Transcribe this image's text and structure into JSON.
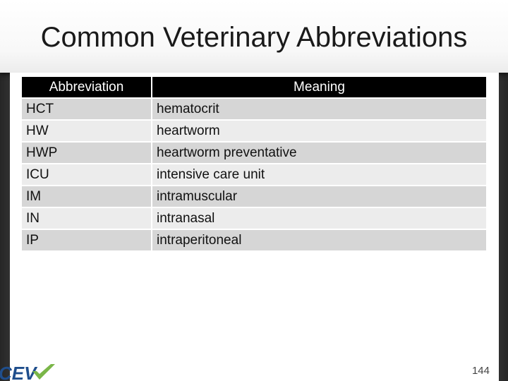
{
  "slide": {
    "title": "Common Veterinary Abbreviations",
    "page_number": "144"
  },
  "logo": {
    "text": "CEV",
    "colors": {
      "blue": "#1f4e8c",
      "green": "#7ab648"
    }
  },
  "table": {
    "headers": [
      "Abbreviation",
      "Meaning"
    ],
    "rows": [
      {
        "abbr": "HCT",
        "meaning": "hematocrit"
      },
      {
        "abbr": "HW",
        "meaning": "heartworm"
      },
      {
        "abbr": "HWP",
        "meaning": "heartworm preventative"
      },
      {
        "abbr": "ICU",
        "meaning": "intensive care unit"
      },
      {
        "abbr": "IM",
        "meaning": "intramuscular"
      },
      {
        "abbr": "IN",
        "meaning": "intranasal"
      },
      {
        "abbr": "IP",
        "meaning": "intraperitoneal"
      }
    ]
  }
}
